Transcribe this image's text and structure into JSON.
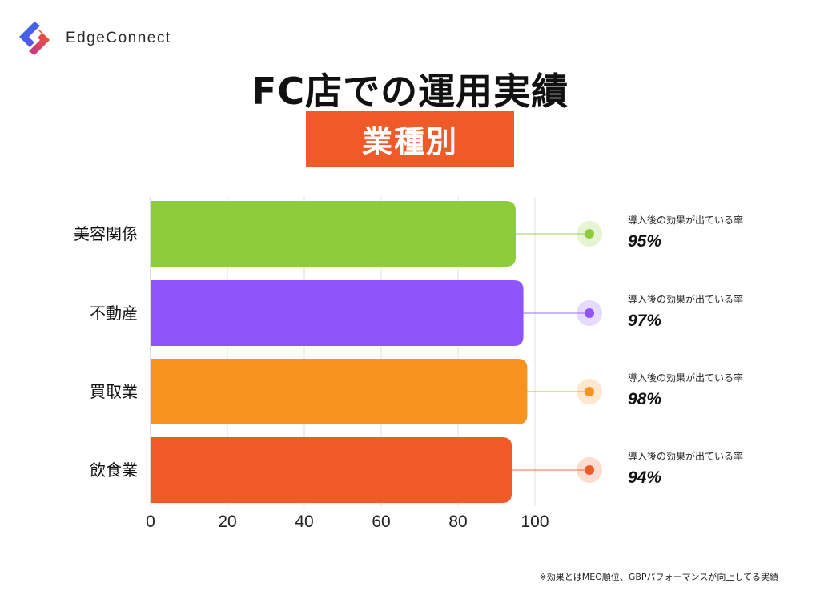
{
  "brand": {
    "name": "EdgeConnect"
  },
  "header": {
    "title": "FC店での運用実績",
    "subtitle": "業種別"
  },
  "colors": {
    "subtitle_bg": "#f05a28",
    "beauty": "#8dcc3a",
    "real_estate": "#8f55fb",
    "buyback": "#f7931e",
    "restaurant": "#f05a28"
  },
  "chart_data": {
    "type": "bar",
    "orientation": "horizontal",
    "title": "",
    "xlabel": "",
    "ylabel": "",
    "categories": [
      "美容関係",
      "不動産",
      "買取業",
      "飲食業"
    ],
    "values": [
      95,
      97,
      98,
      94
    ],
    "colors": [
      "#8dcc3a",
      "#8f55fb",
      "#f7931e",
      "#f05a28"
    ],
    "value_labels": [
      "95%",
      "97%",
      "98%",
      "94%"
    ],
    "annotation_caption": "導入後の効果が出ている率",
    "x_ticks": [
      "0",
      "20",
      "40",
      "60",
      "80",
      "100"
    ],
    "xlim": [
      0,
      100
    ],
    "grid": true,
    "legend": "none"
  },
  "footnote": "※効果とはMEO順位、GBPパフォーマンスが向上してる実績"
}
